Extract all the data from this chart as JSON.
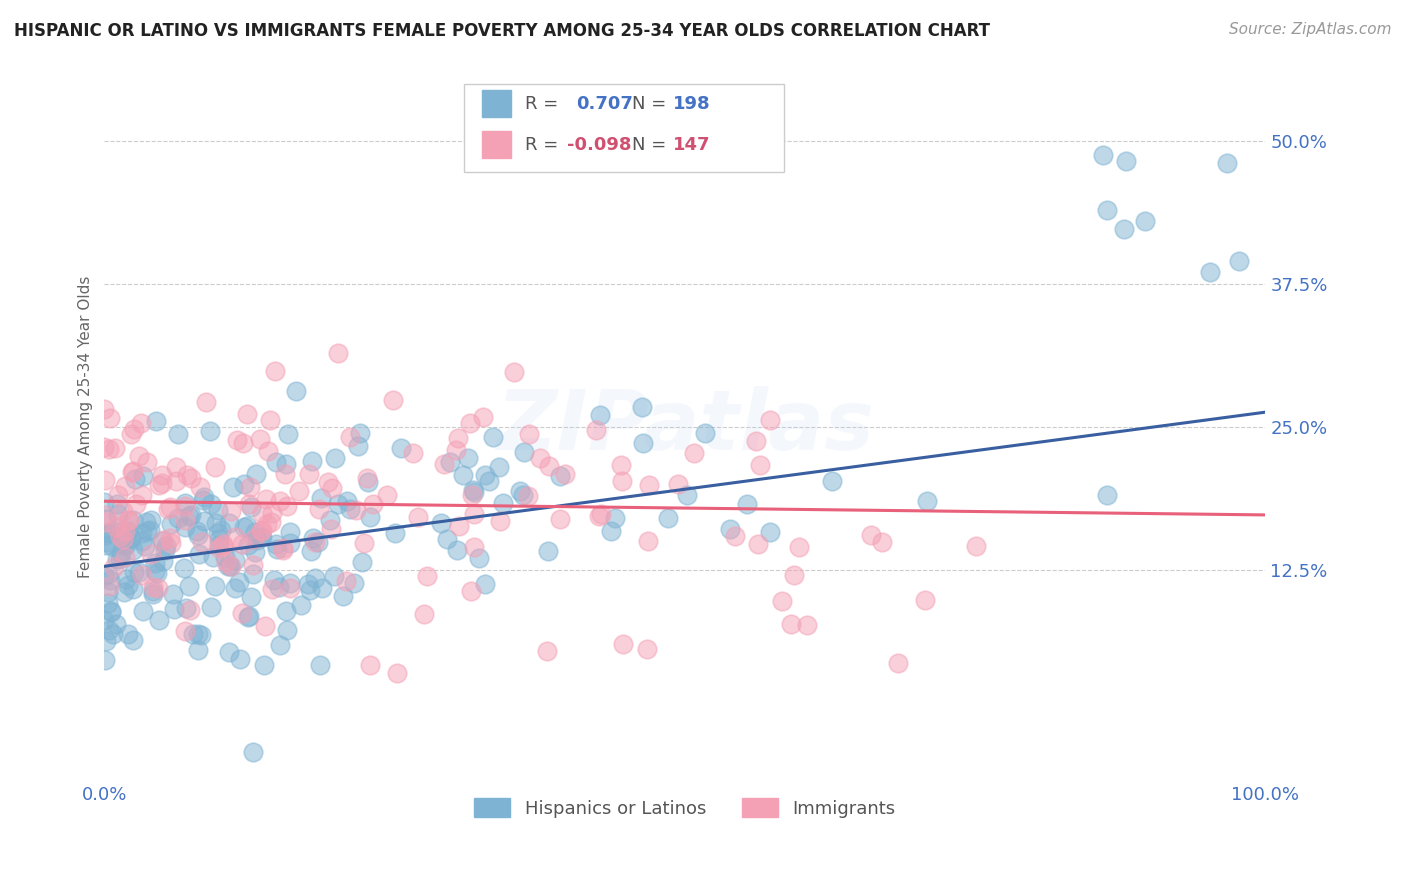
{
  "title": "HISPANIC OR LATINO VS IMMIGRANTS FEMALE POVERTY AMONG 25-34 YEAR OLDS CORRELATION CHART",
  "source": "Source: ZipAtlas.com",
  "ylabel": "Female Poverty Among 25-34 Year Olds",
  "legend_label1": "Hispanics or Latinos",
  "legend_label2": "Immigrants",
  "color_blue": "#7FB3D3",
  "color_pink": "#F4A0B5",
  "color_blue_line": "#3A5FA0",
  "color_pink_line": "#E8607A",
  "color_text_blue": "#4472C4",
  "color_text_pink": "#D05070",
  "color_tick": "#4472C4",
  "background": "#FFFFFF",
  "grid_color": "#CCCCCC",
  "ytick_vals": [
    0.125,
    0.25,
    0.375,
    0.5
  ],
  "ytick_labels": [
    "12.5%",
    "25.0%",
    "37.5%",
    "50.0%"
  ],
  "xlim": [
    0.0,
    1.0
  ],
  "ylim": [
    -0.06,
    0.56
  ],
  "blue_slope": 0.135,
  "blue_intercept": 0.128,
  "pink_slope": -0.012,
  "pink_intercept": 0.185,
  "n_blue": 198,
  "n_pink": 147,
  "marker_size": 180,
  "marker_alpha": 0.5,
  "marker_linewidth": 1.2,
  "title_fontsize": 12,
  "source_fontsize": 11,
  "tick_fontsize": 13,
  "legend_fontsize": 13,
  "ylabel_fontsize": 11,
  "watermark_text": "ZIPatlas",
  "watermark_fontsize": 60,
  "watermark_alpha": 0.12
}
